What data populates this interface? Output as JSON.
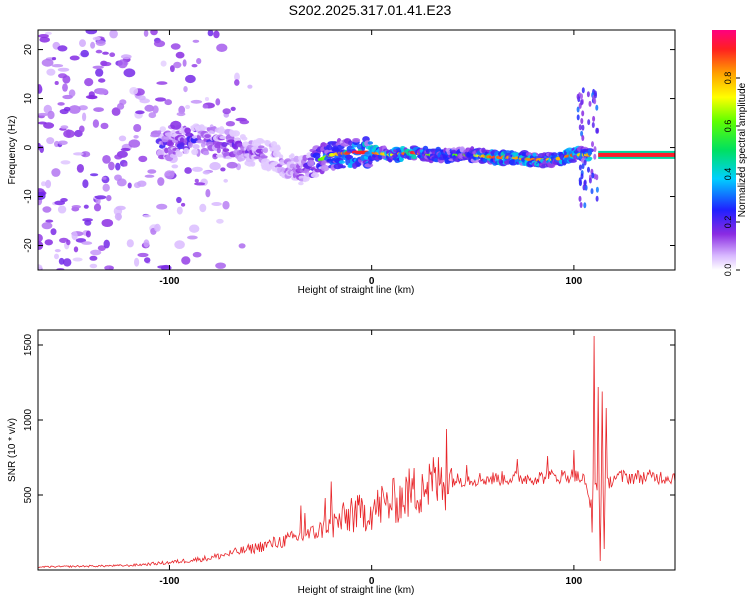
{
  "title": "S202.2025.317.01.41.E23",
  "chart_data": [
    {
      "type": "heatmap",
      "title": "S202.2025.317.01.41.E23",
      "xlabel": "Height of straight line (km)",
      "ylabel": "Frequency (Hz)",
      "xlim": [
        -165,
        150
      ],
      "ylim": [
        -25,
        24
      ],
      "xticks": [
        -100,
        0,
        100
      ],
      "yticks": [
        20,
        10,
        0,
        -10,
        -20
      ],
      "colorbar": {
        "label": "Normalized spectral amplitude",
        "range": [
          0.0,
          1.0
        ],
        "ticks": [
          "0.0",
          "0.2",
          "0.4",
          "0.6",
          "0.8"
        ],
        "tick_values": [
          0.0,
          0.2,
          0.4,
          0.6,
          0.8
        ]
      },
      "ridge": {
        "x": [
          -100,
          -90,
          -80,
          -70,
          -60,
          -50,
          -42,
          -35,
          -28,
          -20,
          -10,
          0,
          10,
          20,
          30,
          40,
          50,
          60,
          70,
          80,
          90,
          100,
          105,
          110,
          120,
          130,
          140,
          150
        ],
        "frequency": [
          0.5,
          1.5,
          1.5,
          0.5,
          -1,
          -1.5,
          -4,
          -5,
          -3,
          -1.5,
          -1,
          -1,
          -1.5,
          -1,
          -1.5,
          -1.5,
          -1.5,
          -2,
          -2,
          -2.5,
          -2.5,
          -1.5,
          -1.5,
          -1.5,
          -1.5,
          -1.5,
          -1.5,
          -1.5
        ],
        "amplitude": [
          0.45,
          0.45,
          0.4,
          0.4,
          0.35,
          0.3,
          0.3,
          0.35,
          0.55,
          0.7,
          0.95,
          0.9,
          0.7,
          0.95,
          0.6,
          0.6,
          0.65,
          0.9,
          0.8,
          0.85,
          0.75,
          0.9,
          0.7,
          0.95,
          0.95,
          0.95,
          0.95,
          0.95
        ]
      }
    },
    {
      "type": "line",
      "xlabel": "Height of straight line (km)",
      "ylabel": "SNR (10 * v/v)",
      "xlim": [
        -165,
        150
      ],
      "ylim": [
        0,
        1600
      ],
      "xticks": [
        -100,
        0,
        100
      ],
      "yticks": [
        500,
        1000,
        1500
      ],
      "color": "#e8262a",
      "envelope": {
        "x": [
          -165,
          -120,
          -100,
          -80,
          -60,
          -45,
          -30,
          -20,
          -10,
          0,
          10,
          20,
          30,
          40,
          60,
          80,
          100,
          105,
          108,
          110,
          112,
          115,
          120,
          150
        ],
        "mean": [
          20,
          30,
          50,
          80,
          140,
          190,
          240,
          300,
          360,
          400,
          450,
          520,
          580,
          600,
          610,
          615,
          630,
          600,
          450,
          650,
          480,
          550,
          620,
          620
        ]
      },
      "spikes": [
        {
          "x": -35,
          "snr": 430
        },
        {
          "x": -33,
          "snr": 380
        },
        {
          "x": -23,
          "snr": 480
        },
        {
          "x": -20,
          "snr": 590
        },
        {
          "x": -10,
          "snr": 480
        },
        {
          "x": 5,
          "snr": 560
        },
        {
          "x": 15,
          "snr": 550
        },
        {
          "x": 25,
          "snr": 640
        },
        {
          "x": 37,
          "snr": 940
        },
        {
          "x": 47,
          "snr": 700
        },
        {
          "x": 72,
          "snr": 740
        },
        {
          "x": 87,
          "snr": 760
        },
        {
          "x": 100,
          "snr": 800
        },
        {
          "x": 110,
          "snr": 1560
        },
        {
          "x": 112,
          "snr": 1220
        },
        {
          "x": 114,
          "snr": 1190
        },
        {
          "x": 116,
          "snr": 1080
        }
      ],
      "dips": [
        {
          "x": 109,
          "snr": 250
        },
        {
          "x": 113,
          "snr": 60
        },
        {
          "x": 115,
          "snr": 140
        }
      ]
    }
  ]
}
